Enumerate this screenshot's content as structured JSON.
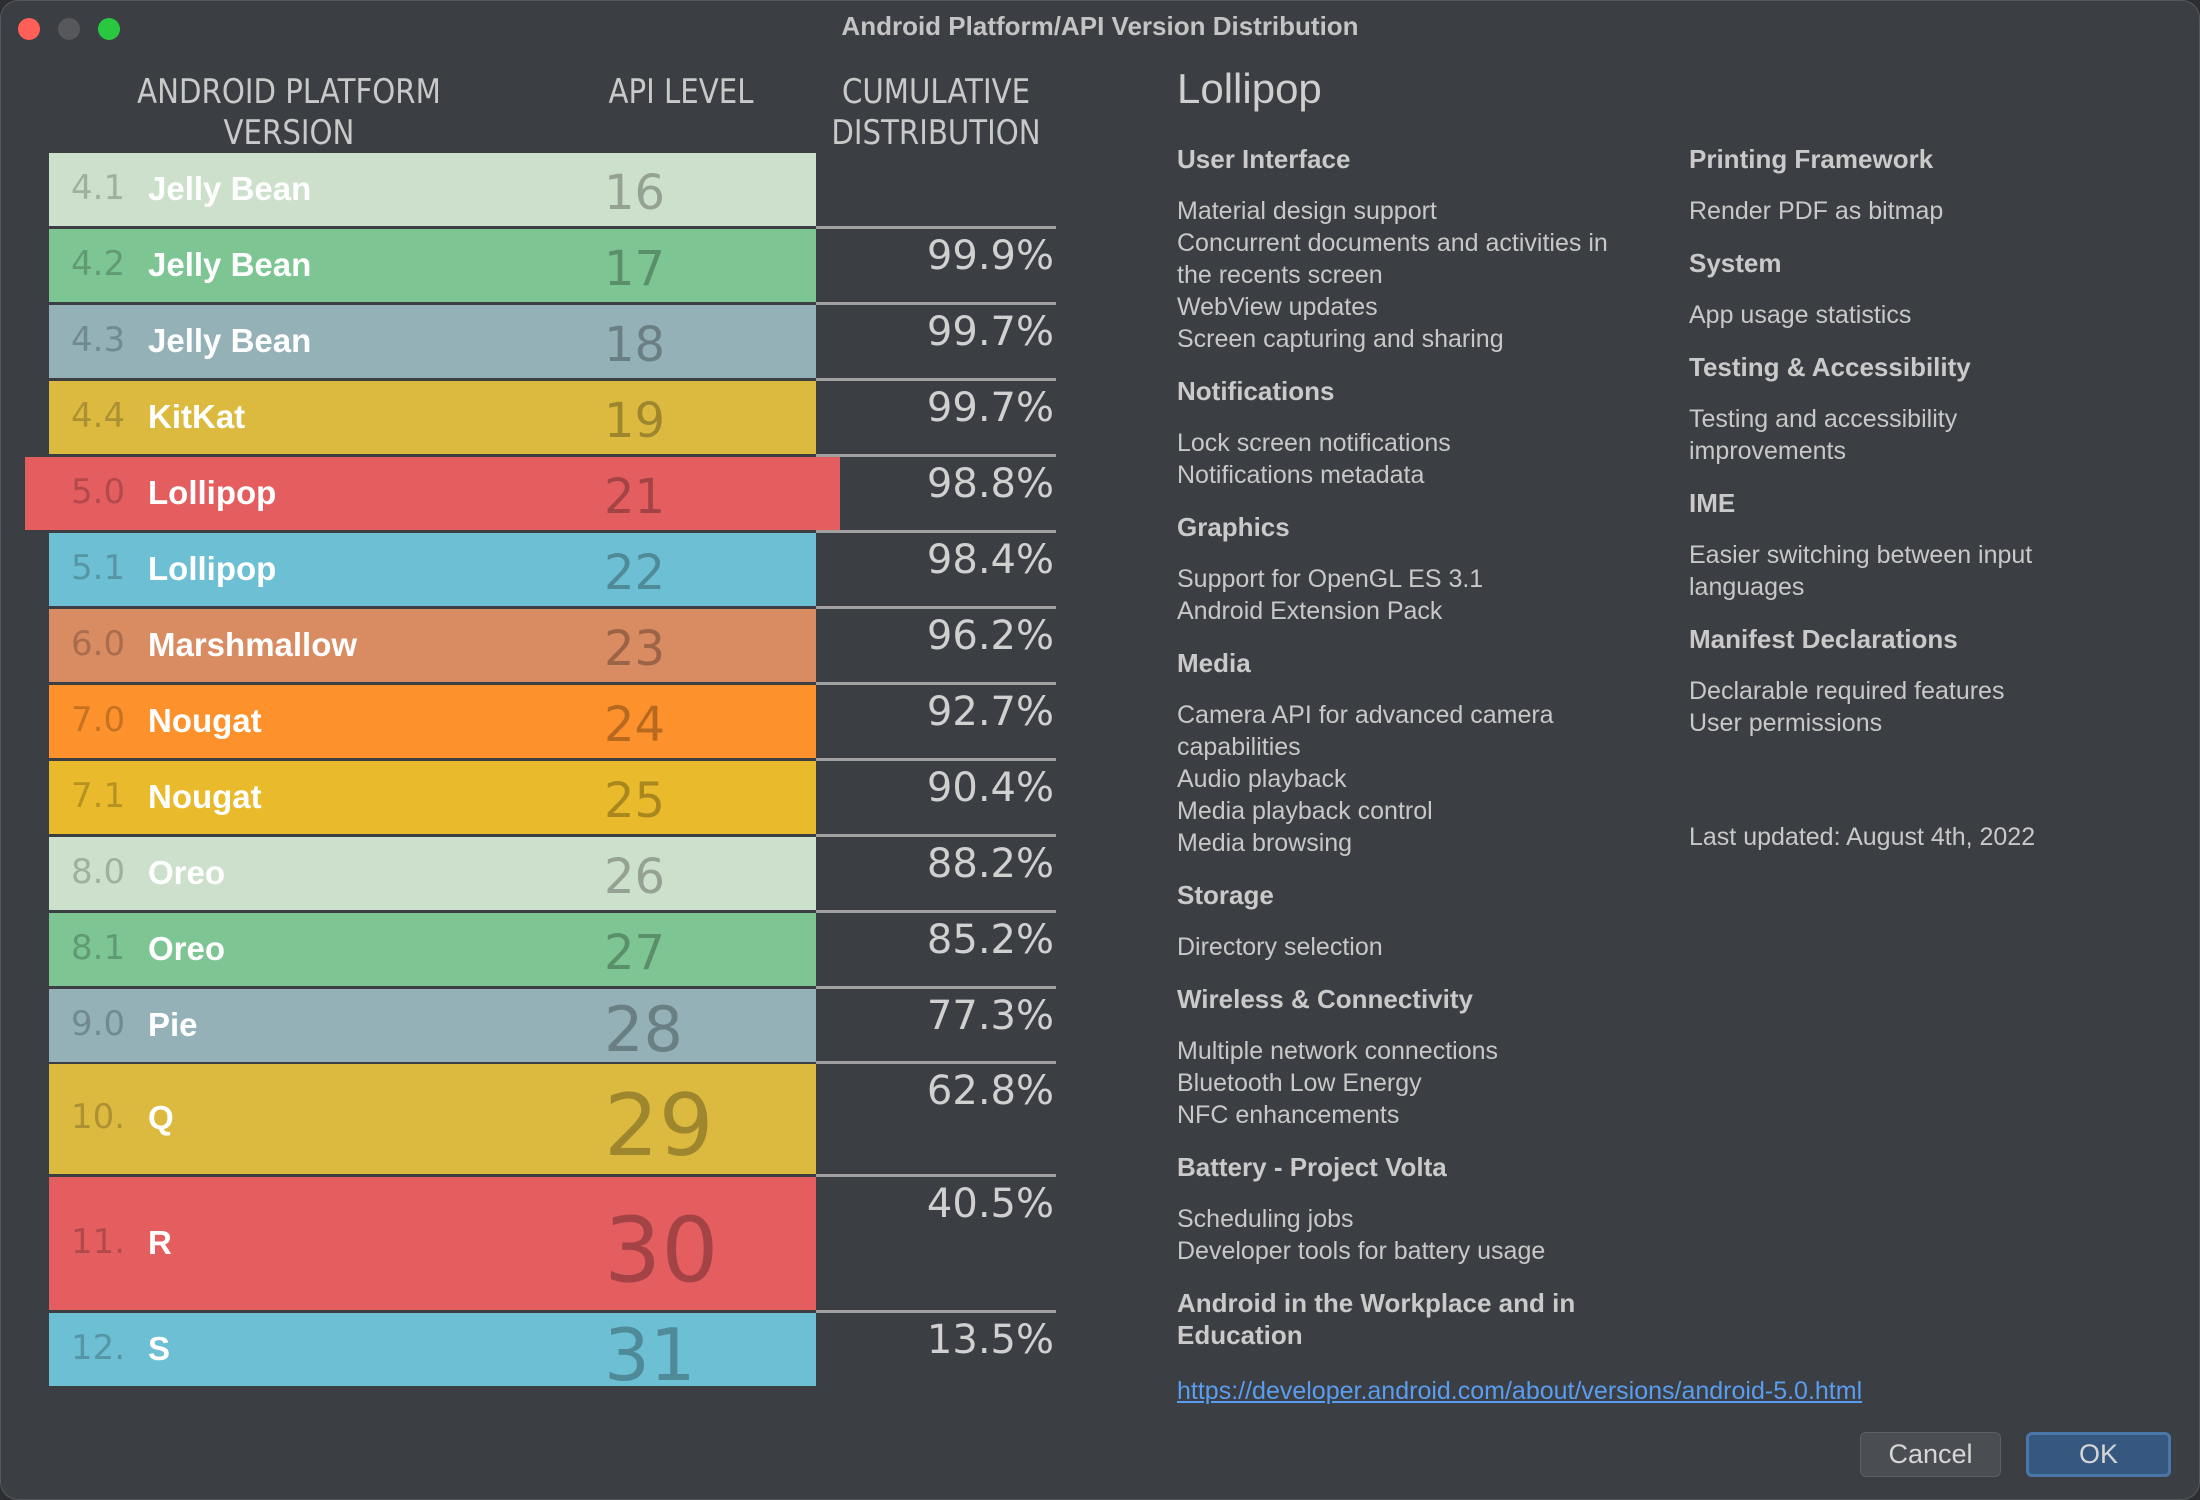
{
  "window": {
    "title": "Android Platform/API Version Distribution"
  },
  "table": {
    "headers": {
      "version_line1": "ANDROID PLATFORM",
      "version_line2": "VERSION",
      "api": "API LEVEL",
      "dist_line1": "CUMULATIVE",
      "dist_line2": "DISTRIBUTION"
    },
    "selected_index": 4,
    "rows": [
      {
        "version": "4.1",
        "name": "Jelly Bean",
        "api": "16",
        "distribution": "",
        "color": "#cde0cc"
      },
      {
        "version": "4.2",
        "name": "Jelly Bean",
        "api": "17",
        "distribution": "99.9%",
        "color": "#7dc693"
      },
      {
        "version": "4.3",
        "name": "Jelly Bean",
        "api": "18",
        "distribution": "99.7%",
        "color": "#93b1b6"
      },
      {
        "version": "4.4",
        "name": "KitKat",
        "api": "19",
        "distribution": "99.7%",
        "color": "#dcba40"
      },
      {
        "version": "5.0",
        "name": "Lollipop",
        "api": "21",
        "distribution": "98.8%",
        "color": "#e45e60"
      },
      {
        "version": "5.1",
        "name": "Lollipop",
        "api": "22",
        "distribution": "98.4%",
        "color": "#6dbfd3"
      },
      {
        "version": "6.0",
        "name": "Marshmallow",
        "api": "23",
        "distribution": "96.2%",
        "color": "#d98b62"
      },
      {
        "version": "7.0",
        "name": "Nougat",
        "api": "24",
        "distribution": "92.7%",
        "color": "#fd922c"
      },
      {
        "version": "7.1",
        "name": "Nougat",
        "api": "25",
        "distribution": "90.4%",
        "color": "#e9bb2c"
      },
      {
        "version": "8.0",
        "name": "Oreo",
        "api": "26",
        "distribution": "88.2%",
        "color": "#cde0cc"
      },
      {
        "version": "8.1",
        "name": "Oreo",
        "api": "27",
        "distribution": "85.2%",
        "color": "#7dc693"
      },
      {
        "version": "9.0",
        "name": "Pie",
        "api": "28",
        "distribution": "77.3%",
        "color": "#93b1b6"
      },
      {
        "version": "10.",
        "name": "Q",
        "api": "29",
        "distribution": "62.8%",
        "color": "#dcba40"
      },
      {
        "version": "11.",
        "name": "R",
        "api": "30",
        "distribution": "40.5%",
        "color": "#e45e60"
      },
      {
        "version": "12.",
        "name": "S",
        "api": "31",
        "distribution": "13.5%",
        "color": "#6dbfd3"
      }
    ]
  },
  "detail": {
    "title": "Lollipop",
    "left_sections": [
      {
        "heading": "User Interface",
        "items": [
          "Material design support",
          "Concurrent documents and activities in the recents screen",
          "WebView updates",
          "Screen capturing and sharing"
        ]
      },
      {
        "heading": "Notifications",
        "items": [
          "Lock screen notifications",
          "Notifications metadata"
        ]
      },
      {
        "heading": "Graphics",
        "items": [
          "Support for OpenGL ES 3.1",
          "Android Extension Pack"
        ]
      },
      {
        "heading": "Media",
        "items": [
          "Camera API for advanced camera capabilities",
          "Audio playback",
          "Media playback control",
          "Media browsing"
        ]
      },
      {
        "heading": "Storage",
        "items": [
          "Directory selection"
        ]
      },
      {
        "heading": "Wireless & Connectivity",
        "items": [
          "Multiple network connections",
          "Bluetooth Low Energy",
          "NFC enhancements"
        ]
      },
      {
        "heading": "Battery - Project Volta",
        "items": [
          "Scheduling jobs",
          "Developer tools for battery usage"
        ]
      },
      {
        "heading": "Android in the Workplace and in Education",
        "items": []
      }
    ],
    "right_sections": [
      {
        "heading": "Printing Framework",
        "items": [
          "Render PDF as bitmap"
        ]
      },
      {
        "heading": "System",
        "items": [
          "App usage statistics"
        ]
      },
      {
        "heading": "Testing & Accessibility",
        "items": [
          "Testing and accessibility improvements"
        ]
      },
      {
        "heading": "IME",
        "items": [
          "Easier switching between input languages"
        ]
      },
      {
        "heading": "Manifest Declarations",
        "items": [
          "Declarable required features",
          "User permissions"
        ]
      }
    ],
    "last_updated": "Last updated: August 4th, 2022",
    "link": "https://developer.android.com/about/versions/android-5.0.html"
  },
  "buttons": {
    "cancel": "Cancel",
    "ok": "OK"
  }
}
